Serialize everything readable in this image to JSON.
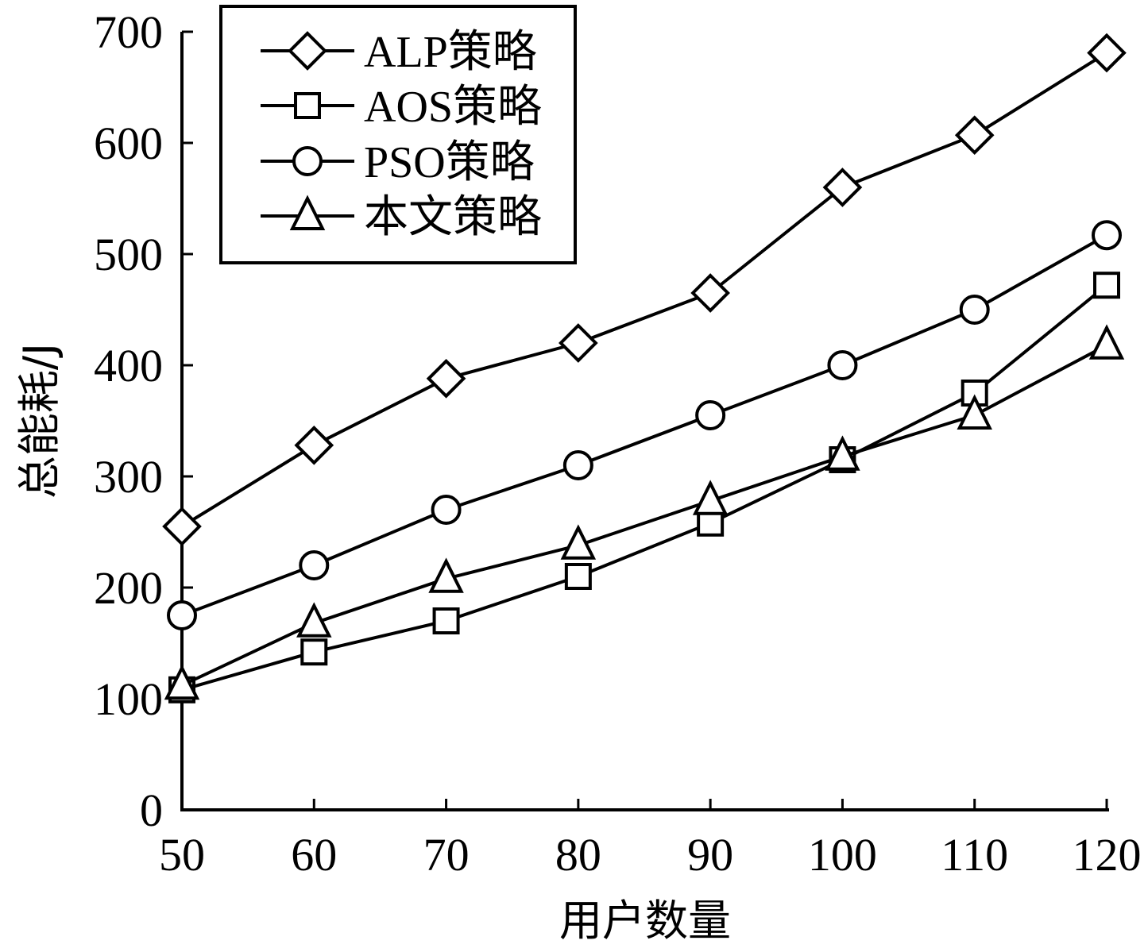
{
  "chart_data": {
    "type": "line",
    "xlabel": "用户数量",
    "ylabel": "总能耗/J",
    "x": [
      50,
      60,
      70,
      80,
      90,
      100,
      110,
      120
    ],
    "xticks": [
      "50",
      "60",
      "70",
      "80",
      "90",
      "100",
      "110",
      "120"
    ],
    "yticks": [
      "0",
      "100",
      "200",
      "300",
      "400",
      "500",
      "600",
      "700"
    ],
    "xlim": [
      50,
      120
    ],
    "ylim": [
      0,
      700
    ],
    "grid": false,
    "legend_position": "top-left",
    "series": [
      {
        "name": "ALP策略",
        "marker": "diamond",
        "values": [
          255,
          328,
          388,
          420,
          465,
          560,
          607,
          681
        ]
      },
      {
        "name": "AOS策略",
        "marker": "square",
        "values": [
          108,
          142,
          170,
          210,
          258,
          315,
          375,
          472
        ]
      },
      {
        "name": "PSO策略",
        "marker": "circle",
        "values": [
          175,
          220,
          270,
          310,
          355,
          400,
          450,
          517
        ]
      },
      {
        "name": "本文策略",
        "marker": "triangle",
        "values": [
          112,
          168,
          208,
          238,
          278,
          318,
          355,
          418
        ]
      }
    ]
  }
}
